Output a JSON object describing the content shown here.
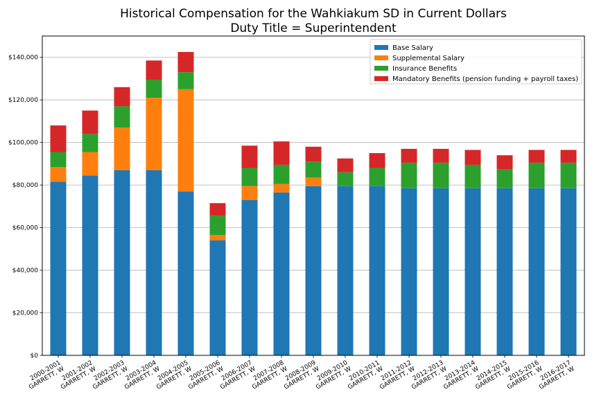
{
  "chart_data": {
    "type": "bar",
    "stacked": true,
    "title": "Historical Compensation for the Wahkiakum SD in Current Dollars",
    "subtitle": "Duty Title = Superintendent",
    "xlabel": "",
    "ylabel": "",
    "ylim": [
      0,
      150000
    ],
    "yticks": [
      0,
      20000,
      40000,
      60000,
      80000,
      100000,
      120000,
      140000
    ],
    "ytick_labels": [
      "$0",
      "$20,000",
      "$40,000",
      "$60,000",
      "$80,000",
      "$100,000",
      "$120,000",
      "$140,000"
    ],
    "grid": "horizontal",
    "legend_position": "top-right",
    "categories": [
      [
        "2000-2001",
        "GARRETT, W"
      ],
      [
        "2001-2002",
        "GARRETT, W"
      ],
      [
        "2002-2003",
        "GARRETT, W"
      ],
      [
        "2003-2004",
        "GARRETT, W"
      ],
      [
        "2004-2005",
        "GARRETT, W"
      ],
      [
        "2005-2006",
        "GARRETT, W"
      ],
      [
        "2006-2007",
        "GARRETT, W"
      ],
      [
        "2007-2008",
        "GARRETT, W"
      ],
      [
        "2008-2009",
        "GARRETT, W"
      ],
      [
        "2009-2010",
        "GARRETT, W"
      ],
      [
        "2010-2011",
        "GARRETT, W"
      ],
      [
        "2011-2012",
        "GARRETT, W"
      ],
      [
        "2012-2013",
        "GARRETT, W"
      ],
      [
        "2013-2014",
        "GARRETT, W"
      ],
      [
        "2014-2015",
        "GARRETT, W"
      ],
      [
        "2015-2016",
        "GARRETT, W"
      ],
      [
        "2016-2017",
        "GARRETT, W"
      ]
    ],
    "series": [
      {
        "name": "Base Salary",
        "color": "#1f77b4",
        "values": [
          81500,
          84500,
          87000,
          87000,
          77000,
          54000,
          73000,
          76500,
          79500,
          79500,
          79500,
          78500,
          78500,
          78500,
          78500,
          78500,
          78500
        ]
      },
      {
        "name": "Supplemental Salary",
        "color": "#ff7f0e",
        "values": [
          7000,
          11000,
          20000,
          34000,
          48000,
          2500,
          6500,
          4000,
          4000,
          0,
          0,
          0,
          0,
          0,
          0,
          0,
          0
        ]
      },
      {
        "name": "Insurance Benefits",
        "color": "#2ca02c",
        "values": [
          7000,
          8500,
          10000,
          8500,
          8000,
          9000,
          8500,
          9000,
          7500,
          6500,
          8500,
          12000,
          12000,
          11000,
          9000,
          12000,
          12000
        ]
      },
      {
        "name": "Mandatory Benefits (pension funding + payroll taxes)",
        "color": "#d62728",
        "values": [
          12500,
          11000,
          9000,
          9000,
          9500,
          6000,
          10500,
          11000,
          7000,
          6500,
          7000,
          6500,
          6500,
          7000,
          6500,
          6000,
          6000
        ]
      }
    ]
  }
}
